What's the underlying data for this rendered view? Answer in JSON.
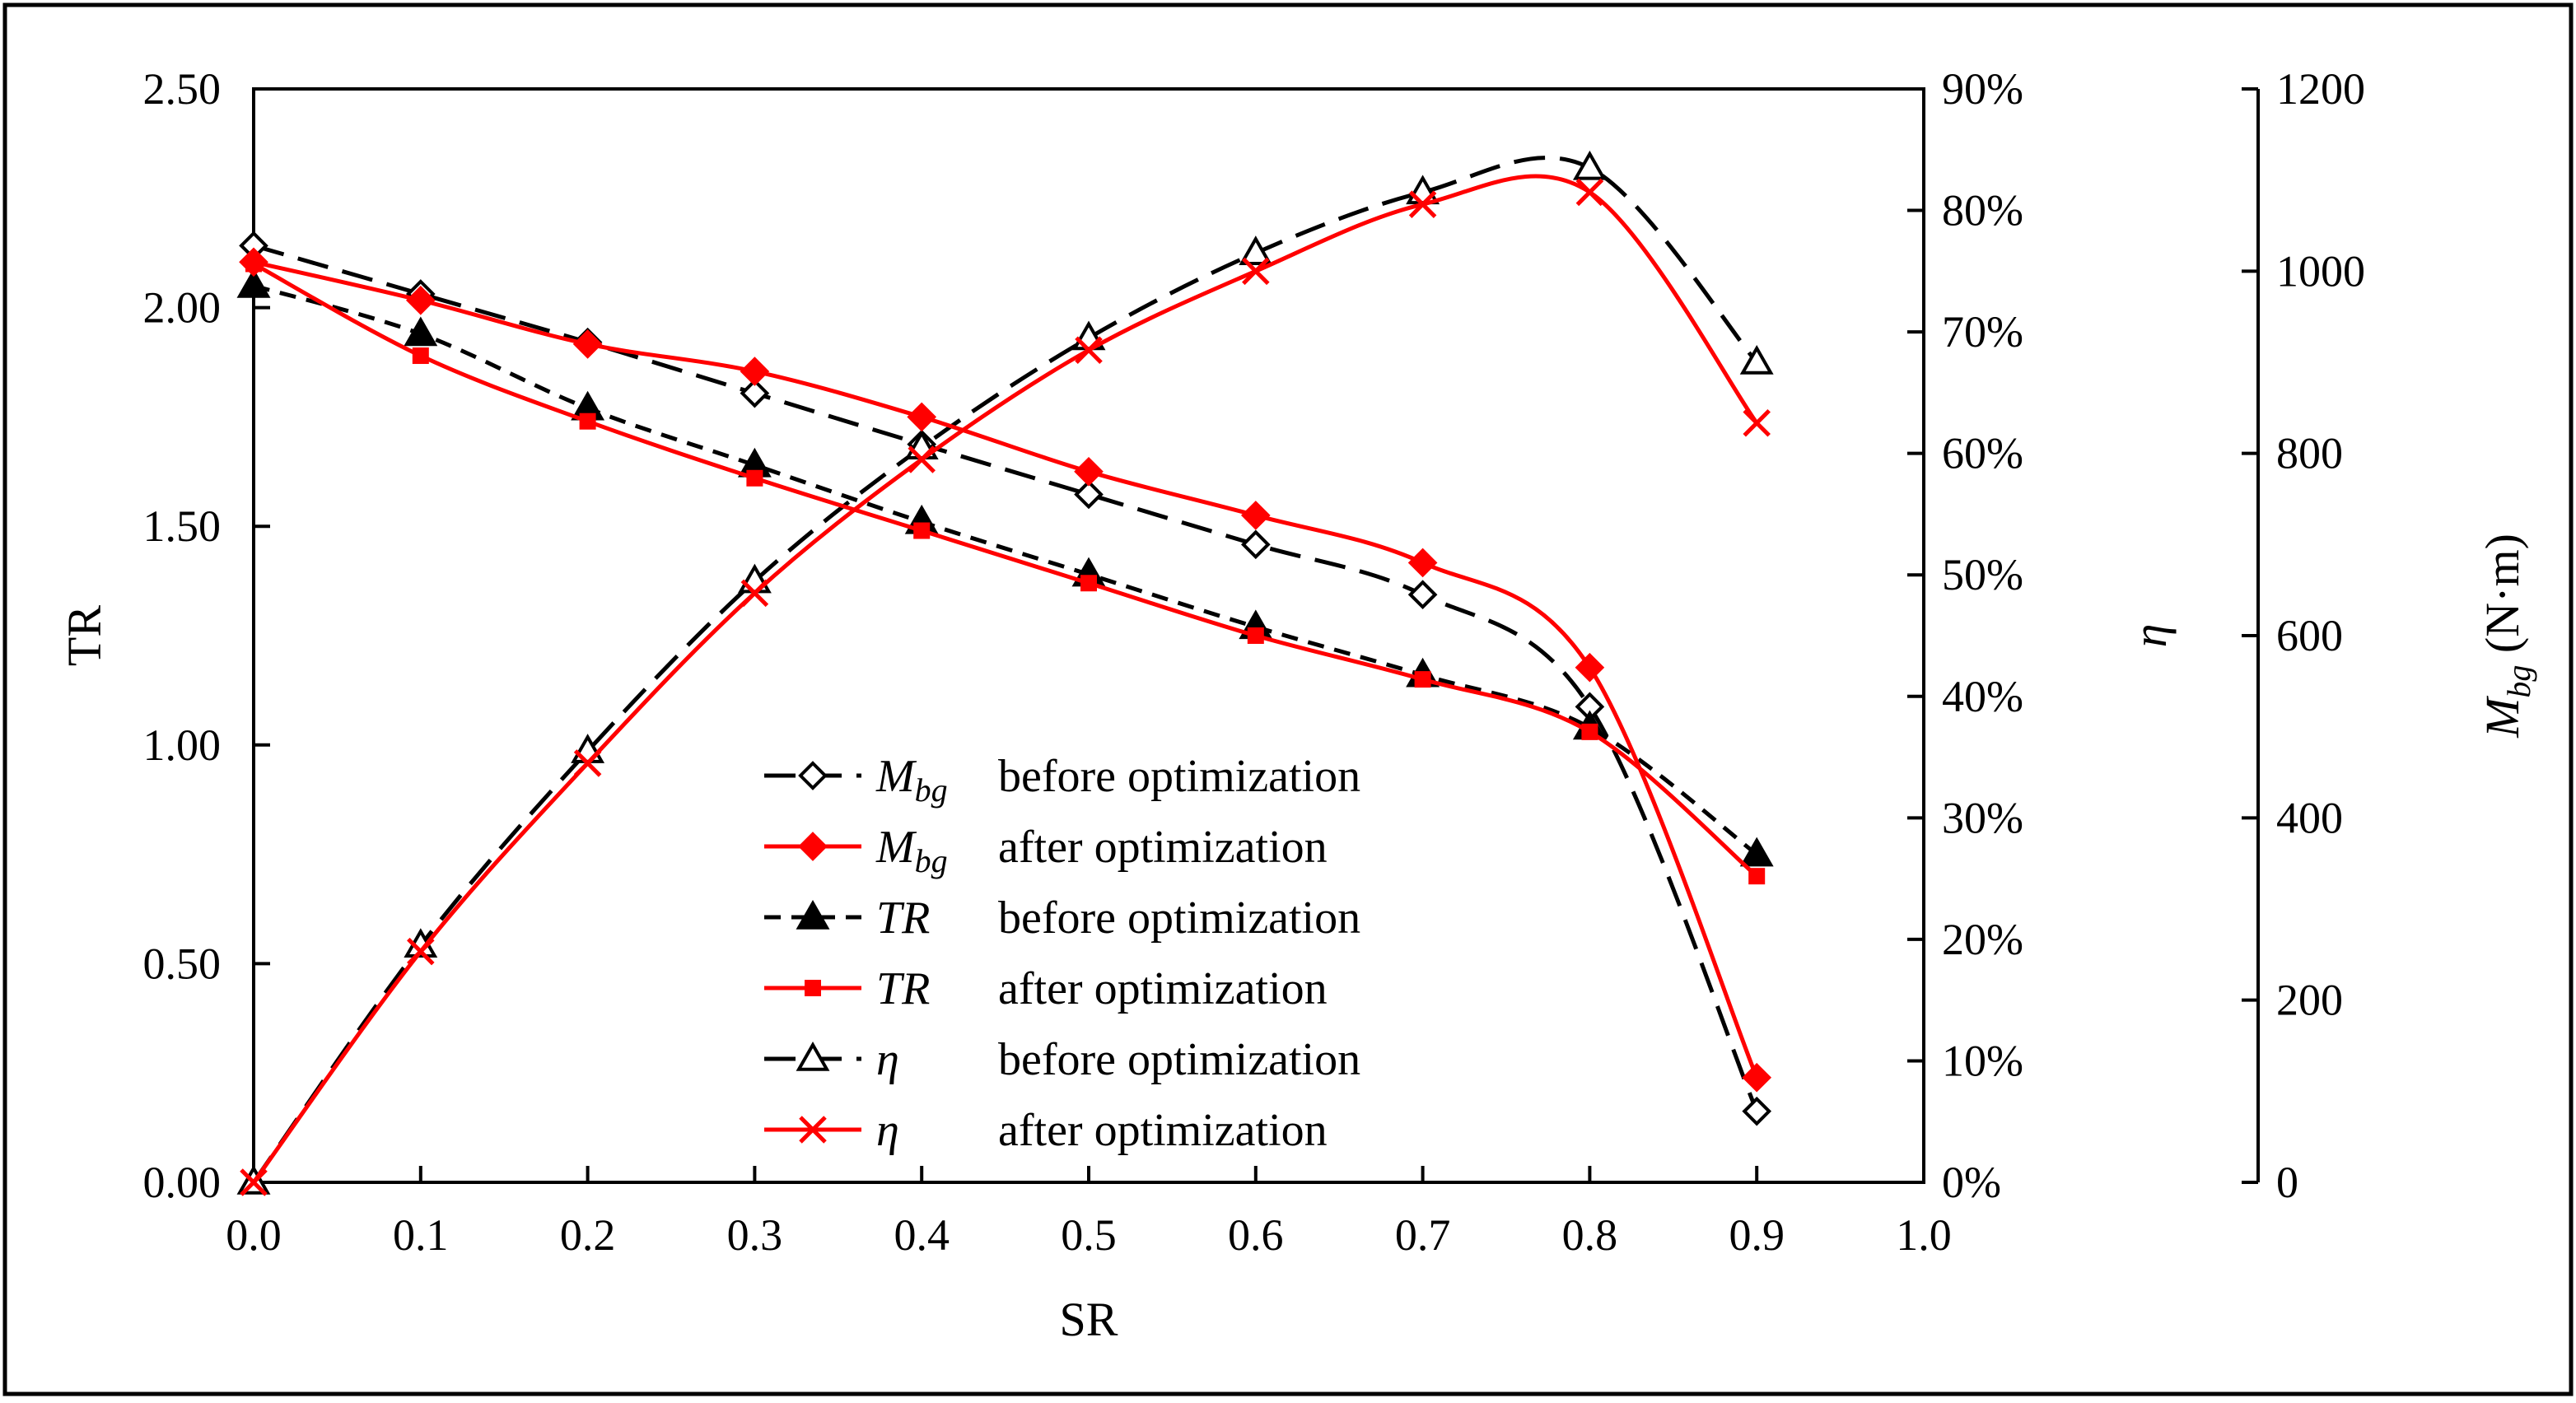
{
  "chart_data": {
    "type": "line",
    "x": [
      0.0,
      0.1,
      0.2,
      0.3,
      0.4,
      0.5,
      0.6,
      0.7,
      0.8,
      0.9
    ],
    "xlabel": "SR",
    "xlim": [
      0.0,
      1.0
    ],
    "xticks": [
      "0.0",
      "0.1",
      "0.2",
      "0.3",
      "0.4",
      "0.5",
      "0.6",
      "0.7",
      "0.8",
      "0.9",
      "1.0"
    ],
    "axes": {
      "tr": {
        "label": "TR",
        "range": [
          0.0,
          2.5
        ],
        "ticks": [
          "0.00",
          "0.50",
          "1.00",
          "1.50",
          "2.00",
          "2.50"
        ]
      },
      "eta": {
        "label": "η",
        "range": [
          0,
          90
        ],
        "ticks": [
          "0%",
          "10%",
          "20%",
          "30%",
          "40%",
          "50%",
          "60%",
          "70%",
          "80%",
          "90%"
        ]
      },
      "mbg": {
        "label_main": "M",
        "label_sub": "bg",
        "label_unit": " (N·m)",
        "range": [
          0,
          1200
        ],
        "ticks": [
          "0",
          "200",
          "400",
          "600",
          "800",
          "1000",
          "1200"
        ]
      }
    },
    "series": [
      {
        "name": "M_bg before optimization",
        "axis": "mbg",
        "color": "#000000",
        "dash": "long",
        "marker": "diamond-open",
        "values": [
          1028,
          975,
          922,
          866,
          810,
          755,
          700,
          645,
          522,
          78
        ]
      },
      {
        "name": "M_bg after optimization",
        "axis": "mbg",
        "color": "#ff0000",
        "dash": "solid",
        "marker": "diamond-filled",
        "values": [
          1010,
          968,
          920,
          890,
          840,
          780,
          732,
          680,
          565,
          115
        ]
      },
      {
        "name": "TR before optimization",
        "axis": "tr",
        "color": "#000000",
        "dash": "short",
        "marker": "triangle-filled",
        "values": [
          2.05,
          1.94,
          1.77,
          1.64,
          1.51,
          1.39,
          1.27,
          1.16,
          1.04,
          0.75
        ]
      },
      {
        "name": "TR after optimization",
        "axis": "tr",
        "color": "#ff0000",
        "dash": "solid",
        "marker": "square-small",
        "values": [
          2.1,
          1.89,
          1.74,
          1.61,
          1.49,
          1.37,
          1.25,
          1.15,
          1.03,
          0.7
        ]
      },
      {
        "name": "η before optimization",
        "axis": "eta",
        "color": "#000000",
        "dash": "long",
        "marker": "triangle-open",
        "values": [
          0,
          19.5,
          35.5,
          49.5,
          60.5,
          69.5,
          76.5,
          81.5,
          83.5,
          67.5
        ]
      },
      {
        "name": "η after optimization",
        "axis": "eta",
        "color": "#ff0000",
        "dash": "solid",
        "marker": "x",
        "values": [
          0,
          19.0,
          34.5,
          48.5,
          59.5,
          68.5,
          75.0,
          80.5,
          81.5,
          62.5
        ]
      }
    ],
    "legend": {
      "position": "center-bottom",
      "entries": [
        {
          "symbol_main": "M",
          "symbol_sub": "bg",
          "text": "before optimization"
        },
        {
          "symbol_main": "M",
          "symbol_sub": "bg",
          "text": "after optimization"
        },
        {
          "symbol_main": "TR",
          "symbol_sub": "",
          "text": "before optimization"
        },
        {
          "symbol_main": "TR",
          "symbol_sub": "",
          "text": "after optimization"
        },
        {
          "symbol_main": "η",
          "symbol_sub": "",
          "text": "before optimization"
        },
        {
          "symbol_main": "η",
          "symbol_sub": "",
          "text": "after optimization"
        }
      ]
    }
  }
}
